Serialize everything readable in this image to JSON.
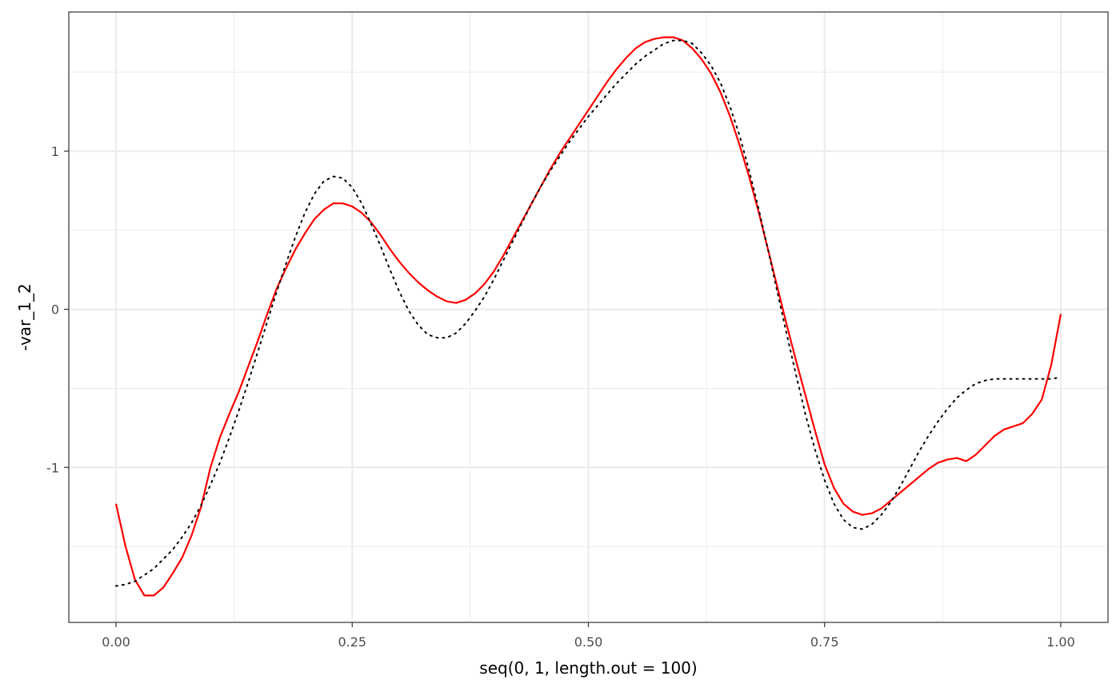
{
  "chart_data": {
    "type": "line",
    "xlabel": "seq(0, 1, length.out = 100)",
    "ylabel": "-var_1_2",
    "xlim": [
      -0.05,
      1.05
    ],
    "ylim": [
      -1.98,
      1.88
    ],
    "x_ticks": [
      0.0,
      0.25,
      0.5,
      0.75,
      1.0
    ],
    "x_tick_labels": [
      "0.00",
      "0.25",
      "0.50",
      "0.75",
      "1.00"
    ],
    "y_ticks": [
      -1,
      0,
      1
    ],
    "y_tick_labels": [
      "-1",
      "0",
      "1"
    ],
    "grid": true,
    "legend": "none",
    "series": [
      {
        "style": "solid",
        "color": "#ff0000",
        "points": [
          [
            0.0,
            -1.23
          ],
          [
            0.01,
            -1.5
          ],
          [
            0.02,
            -1.71
          ],
          [
            0.03,
            -1.81
          ],
          [
            0.04,
            -1.81
          ],
          [
            0.05,
            -1.76
          ],
          [
            0.06,
            -1.67
          ],
          [
            0.07,
            -1.57
          ],
          [
            0.08,
            -1.43
          ],
          [
            0.09,
            -1.25
          ],
          [
            0.1,
            -1.0
          ],
          [
            0.11,
            -0.81
          ],
          [
            0.12,
            -0.66
          ],
          [
            0.13,
            -0.52
          ],
          [
            0.14,
            -0.36
          ],
          [
            0.15,
            -0.2
          ],
          [
            0.16,
            -0.03
          ],
          [
            0.17,
            0.13
          ],
          [
            0.18,
            0.26
          ],
          [
            0.19,
            0.38
          ],
          [
            0.2,
            0.48
          ],
          [
            0.21,
            0.57
          ],
          [
            0.22,
            0.63
          ],
          [
            0.23,
            0.67
          ],
          [
            0.24,
            0.67
          ],
          [
            0.25,
            0.65
          ],
          [
            0.26,
            0.61
          ],
          [
            0.27,
            0.55
          ],
          [
            0.28,
            0.47
          ],
          [
            0.29,
            0.38
          ],
          [
            0.3,
            0.3
          ],
          [
            0.31,
            0.23
          ],
          [
            0.32,
            0.17
          ],
          [
            0.33,
            0.12
          ],
          [
            0.34,
            0.08
          ],
          [
            0.35,
            0.05
          ],
          [
            0.36,
            0.04
          ],
          [
            0.37,
            0.06
          ],
          [
            0.38,
            0.1
          ],
          [
            0.39,
            0.16
          ],
          [
            0.4,
            0.24
          ],
          [
            0.41,
            0.34
          ],
          [
            0.42,
            0.45
          ],
          [
            0.43,
            0.56
          ],
          [
            0.44,
            0.67
          ],
          [
            0.45,
            0.78
          ],
          [
            0.46,
            0.89
          ],
          [
            0.47,
            0.99
          ],
          [
            0.48,
            1.08
          ],
          [
            0.49,
            1.17
          ],
          [
            0.5,
            1.26
          ],
          [
            0.51,
            1.35
          ],
          [
            0.52,
            1.44
          ],
          [
            0.53,
            1.52
          ],
          [
            0.54,
            1.59
          ],
          [
            0.55,
            1.65
          ],
          [
            0.56,
            1.69
          ],
          [
            0.57,
            1.71
          ],
          [
            0.58,
            1.72
          ],
          [
            0.59,
            1.72
          ],
          [
            0.6,
            1.7
          ],
          [
            0.61,
            1.65
          ],
          [
            0.62,
            1.58
          ],
          [
            0.63,
            1.49
          ],
          [
            0.64,
            1.37
          ],
          [
            0.65,
            1.22
          ],
          [
            0.66,
            1.04
          ],
          [
            0.67,
            0.84
          ],
          [
            0.68,
            0.62
          ],
          [
            0.69,
            0.38
          ],
          [
            0.7,
            0.14
          ],
          [
            0.71,
            -0.1
          ],
          [
            0.72,
            -0.33
          ],
          [
            0.73,
            -0.55
          ],
          [
            0.74,
            -0.77
          ],
          [
            0.75,
            -0.98
          ],
          [
            0.76,
            -1.13
          ],
          [
            0.77,
            -1.23
          ],
          [
            0.78,
            -1.28
          ],
          [
            0.79,
            -1.3
          ],
          [
            0.8,
            -1.29
          ],
          [
            0.81,
            -1.26
          ],
          [
            0.82,
            -1.21
          ],
          [
            0.83,
            -1.16
          ],
          [
            0.84,
            -1.11
          ],
          [
            0.85,
            -1.06
          ],
          [
            0.86,
            -1.01
          ],
          [
            0.87,
            -0.97
          ],
          [
            0.88,
            -0.95
          ],
          [
            0.89,
            -0.94
          ],
          [
            0.9,
            -0.96
          ],
          [
            0.91,
            -0.92
          ],
          [
            0.92,
            -0.86
          ],
          [
            0.93,
            -0.8
          ],
          [
            0.94,
            -0.76
          ],
          [
            0.95,
            -0.74
          ],
          [
            0.96,
            -0.72
          ],
          [
            0.97,
            -0.66
          ],
          [
            0.98,
            -0.57
          ],
          [
            0.99,
            -0.35
          ],
          [
            1.0,
            -0.03
          ]
        ]
      },
      {
        "style": "dotted",
        "color": "#000000",
        "points": [
          [
            0.0,
            -1.75
          ],
          [
            0.01,
            -1.74
          ],
          [
            0.02,
            -1.72
          ],
          [
            0.03,
            -1.68
          ],
          [
            0.04,
            -1.64
          ],
          [
            0.05,
            -1.58
          ],
          [
            0.06,
            -1.52
          ],
          [
            0.07,
            -1.44
          ],
          [
            0.08,
            -1.35
          ],
          [
            0.09,
            -1.24
          ],
          [
            0.1,
            -1.11
          ],
          [
            0.11,
            -0.97
          ],
          [
            0.12,
            -0.81
          ],
          [
            0.13,
            -0.64
          ],
          [
            0.14,
            -0.46
          ],
          [
            0.15,
            -0.27
          ],
          [
            0.16,
            -0.08
          ],
          [
            0.17,
            0.11
          ],
          [
            0.18,
            0.29
          ],
          [
            0.19,
            0.46
          ],
          [
            0.2,
            0.61
          ],
          [
            0.21,
            0.73
          ],
          [
            0.22,
            0.81
          ],
          [
            0.23,
            0.84
          ],
          [
            0.24,
            0.83
          ],
          [
            0.25,
            0.77
          ],
          [
            0.26,
            0.67
          ],
          [
            0.27,
            0.54
          ],
          [
            0.28,
            0.4
          ],
          [
            0.29,
            0.25
          ],
          [
            0.3,
            0.11
          ],
          [
            0.31,
            -0.01
          ],
          [
            0.32,
            -0.1
          ],
          [
            0.33,
            -0.16
          ],
          [
            0.34,
            -0.18
          ],
          [
            0.35,
            -0.18
          ],
          [
            0.36,
            -0.15
          ],
          [
            0.37,
            -0.09
          ],
          [
            0.38,
            -0.01
          ],
          [
            0.39,
            0.08
          ],
          [
            0.4,
            0.19
          ],
          [
            0.41,
            0.31
          ],
          [
            0.42,
            0.43
          ],
          [
            0.43,
            0.55
          ],
          [
            0.44,
            0.67
          ],
          [
            0.45,
            0.78
          ],
          [
            0.46,
            0.88
          ],
          [
            0.47,
            0.97
          ],
          [
            0.48,
            1.06
          ],
          [
            0.49,
            1.14
          ],
          [
            0.5,
            1.22
          ],
          [
            0.51,
            1.29
          ],
          [
            0.52,
            1.36
          ],
          [
            0.53,
            1.43
          ],
          [
            0.54,
            1.49
          ],
          [
            0.55,
            1.55
          ],
          [
            0.56,
            1.6
          ],
          [
            0.57,
            1.64
          ],
          [
            0.58,
            1.68
          ],
          [
            0.59,
            1.7
          ],
          [
            0.6,
            1.7
          ],
          [
            0.61,
            1.68
          ],
          [
            0.62,
            1.62
          ],
          [
            0.63,
            1.54
          ],
          [
            0.64,
            1.43
          ],
          [
            0.65,
            1.28
          ],
          [
            0.66,
            1.1
          ],
          [
            0.67,
            0.88
          ],
          [
            0.68,
            0.64
          ],
          [
            0.69,
            0.38
          ],
          [
            0.7,
            0.11
          ],
          [
            0.71,
            -0.16
          ],
          [
            0.72,
            -0.42
          ],
          [
            0.73,
            -0.67
          ],
          [
            0.74,
            -0.89
          ],
          [
            0.75,
            -1.08
          ],
          [
            0.76,
            -1.23
          ],
          [
            0.77,
            -1.33
          ],
          [
            0.78,
            -1.38
          ],
          [
            0.79,
            -1.39
          ],
          [
            0.8,
            -1.36
          ],
          [
            0.81,
            -1.3
          ],
          [
            0.82,
            -1.22
          ],
          [
            0.83,
            -1.12
          ],
          [
            0.84,
            -1.01
          ],
          [
            0.85,
            -0.9
          ],
          [
            0.86,
            -0.8
          ],
          [
            0.87,
            -0.71
          ],
          [
            0.88,
            -0.63
          ],
          [
            0.89,
            -0.56
          ],
          [
            0.9,
            -0.51
          ],
          [
            0.91,
            -0.47
          ],
          [
            0.92,
            -0.45
          ],
          [
            0.93,
            -0.44
          ],
          [
            0.94,
            -0.44
          ],
          [
            0.95,
            -0.44
          ],
          [
            0.96,
            -0.44
          ],
          [
            0.97,
            -0.44
          ],
          [
            0.98,
            -0.44
          ],
          [
            0.99,
            -0.44
          ],
          [
            1.0,
            -0.43
          ]
        ]
      }
    ]
  }
}
